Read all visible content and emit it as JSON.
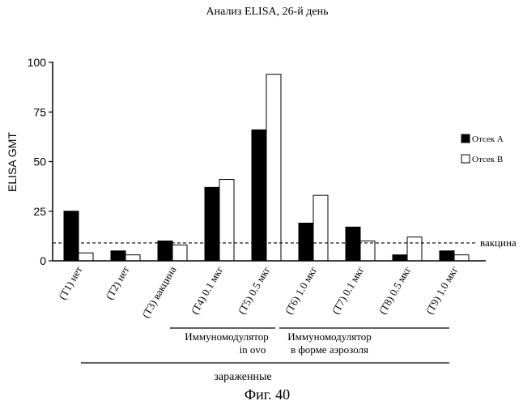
{
  "chart_data": {
    "type": "bar",
    "title": "Анализ ELISA, 26-й день",
    "ylabel": "ELISA GMT",
    "xlabel": "",
    "ylim": [
      0,
      100
    ],
    "yticks": [
      0,
      25,
      50,
      75,
      100
    ],
    "categories": [
      "(T1) нет",
      "(T2) нет",
      "(T3) вакцина",
      "(T4) 0.1 мкг",
      "(T5) 0.5 мкг",
      "(T6) 1.0 мкг",
      "(T7) 0.1 мкг",
      "(T8) 0.5  мкг",
      "(T9) 1.0 мкг"
    ],
    "series": [
      {
        "name": "Отсек А",
        "values": [
          25,
          5,
          10,
          37,
          66,
          19,
          17,
          3,
          5
        ],
        "color": "#000000"
      },
      {
        "name": "Отсек В",
        "values": [
          4,
          3,
          8,
          41,
          94,
          33,
          10,
          12,
          3
        ],
        "color": "#ffffff"
      }
    ],
    "reference_line": {
      "label": "вакцина",
      "value": 9,
      "style": "dashed"
    },
    "groups": [
      {
        "label_lines": [
          "Иммуномодулятор",
          "in ovo"
        ],
        "from": 3,
        "to": 5
      },
      {
        "label_lines": [
          "Иммуномодулятор",
          "в форме аэрозоля"
        ],
        "from": 6,
        "to": 8
      }
    ],
    "super_group": {
      "label": "зараженные",
      "from": 0,
      "to": 8
    },
    "legend_position": "right",
    "grid": false
  },
  "figure_caption": "Фиг. 40"
}
